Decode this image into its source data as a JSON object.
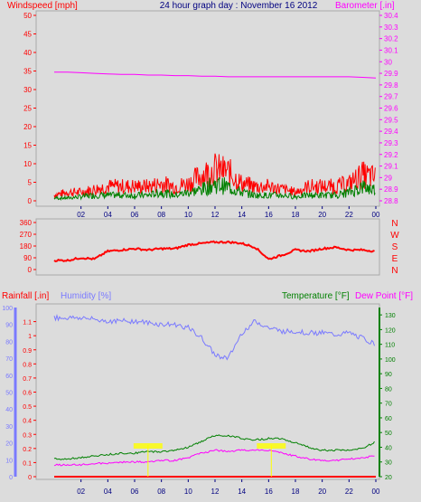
{
  "header": {
    "left": "Windspeed [mph]",
    "center": "24 hour graph day : November 16 2012",
    "right": "Barometer [.in]"
  },
  "time_ticks": [
    "02",
    "04",
    "06",
    "08",
    "10",
    "12",
    "14",
    "16",
    "18",
    "20",
    "22",
    "00"
  ],
  "colors": {
    "bg": "#dcdcdc",
    "plot_bg": "#dcdcdc",
    "border": "#aaaaaa",
    "grid": "#cccccc",
    "windspeed": "#ff0000",
    "avg_wind": "#008000",
    "barometer": "#ff00ff",
    "direction": "#ff0000",
    "rain": "#ff0000",
    "humidity": "#7a7aff",
    "temperature": "#008000",
    "dewpoint": "#ff00ff",
    "tick_time": "#000080",
    "marker": "#ffff00"
  },
  "chart_data": [
    {
      "type": "line",
      "name": "wind",
      "title": "24 hour graph day : November 16 2012",
      "ylabel": "Windspeed [mph]",
      "ylabel_right": "Barometer [.in]",
      "ylim": [
        0,
        50
      ],
      "ylim_right": [
        28.8,
        30.4
      ],
      "yticks": [
        "0",
        "5",
        "10",
        "15",
        "20",
        "25",
        "30",
        "35",
        "40",
        "45",
        "50"
      ],
      "yticks_right": [
        "28.8",
        "28.9",
        "29",
        "29.1",
        "29.2",
        "29.3",
        "29.4",
        "29.5",
        "29.6",
        "29.7",
        "29.8",
        "29.9",
        "30",
        "30.1",
        "30.2",
        "30.3",
        "30.4"
      ],
      "x_hours": [
        0,
        1,
        2,
        3,
        4,
        5,
        6,
        7,
        8,
        9,
        10,
        11,
        12,
        13,
        14,
        15,
        16,
        17,
        18,
        19,
        20,
        21,
        22,
        23,
        24
      ],
      "series": [
        {
          "key": "gust",
          "values": [
            2,
            3,
            3,
            4,
            5,
            5,
            5,
            5,
            6,
            5,
            6,
            9,
            11,
            10,
            6,
            5,
            5,
            4,
            3,
            5,
            5,
            5,
            6,
            9,
            8
          ]
        },
        {
          "key": "avg",
          "values": [
            1,
            1,
            1.5,
            2,
            2,
            2,
            2,
            2,
            3,
            2,
            3,
            4,
            6,
            5,
            3,
            2,
            2,
            2,
            1.5,
            2,
            2,
            2,
            3,
            5,
            4
          ]
        },
        {
          "key": "baro",
          "values": [
            29.91,
            29.91,
            29.905,
            29.9,
            29.895,
            29.89,
            29.89,
            29.885,
            29.885,
            29.88,
            29.88,
            29.875,
            29.875,
            29.87,
            29.87,
            29.87,
            29.87,
            29.87,
            29.87,
            29.87,
            29.87,
            29.87,
            29.87,
            29.865,
            29.86
          ]
        }
      ]
    },
    {
      "type": "line",
      "name": "direction",
      "ylim": [
        0,
        360
      ],
      "yticks": [
        "0",
        "90",
        "180",
        "270",
        "360"
      ],
      "compass": [
        "N",
        "W",
        "S",
        "E",
        "N"
      ],
      "x_hours": [
        0,
        1,
        2,
        3,
        4,
        5,
        6,
        7,
        8,
        9,
        10,
        11,
        12,
        13,
        14,
        15,
        16,
        17,
        18,
        19,
        20,
        21,
        22,
        23,
        24
      ],
      "values": [
        70,
        70,
        90,
        80,
        140,
        150,
        160,
        150,
        160,
        160,
        190,
        200,
        210,
        210,
        200,
        170,
        80,
        110,
        150,
        140,
        160,
        170,
        150,
        150,
        140
      ]
    },
    {
      "type": "line",
      "name": "climate",
      "ylabel": "Rainfall [.in]",
      "ylabel_humidity": "Humidity [%]",
      "ylabel_right": "Temperature [°F]",
      "ylabel_right2": "Dew Point [°F]",
      "ylim_rain": [
        0,
        1.2
      ],
      "ylim_humidity": [
        0,
        100
      ],
      "ylim_temp": [
        20,
        135
      ],
      "yticks_rain": [
        "0",
        "0.1",
        "0.2",
        "0.3",
        "0.4",
        "0.5",
        "0.6",
        "0.7",
        "0.8",
        "0.9",
        "1",
        "1.1"
      ],
      "yticks_humidity": [
        "0",
        "10",
        "20",
        "30",
        "40",
        "50",
        "60",
        "70",
        "80",
        "90",
        "100"
      ],
      "yticks_temp": [
        "20",
        "30",
        "40",
        "50",
        "60",
        "70",
        "80",
        "90",
        "100",
        "110",
        "120",
        "130"
      ],
      "x_hours": [
        0,
        1,
        2,
        3,
        4,
        5,
        6,
        7,
        8,
        9,
        10,
        11,
        12,
        13,
        14,
        15,
        16,
        17,
        18,
        19,
        20,
        21,
        22,
        23,
        24
      ],
      "series": [
        {
          "key": "humidity",
          "values": [
            94,
            94,
            94,
            93,
            92,
            92,
            92,
            91,
            90,
            90,
            88,
            82,
            72,
            70,
            85,
            92,
            88,
            86,
            86,
            85,
            85,
            84,
            85,
            82,
            78
          ]
        },
        {
          "key": "temperature",
          "values": [
            32,
            32,
            33,
            34,
            35,
            36,
            36,
            37,
            37,
            38,
            40,
            44,
            48,
            48,
            46,
            45,
            46,
            46,
            43,
            40,
            38,
            38,
            38,
            39,
            44
          ]
        },
        {
          "key": "dewpoint",
          "values": [
            28,
            28,
            28,
            29,
            29,
            30,
            30,
            30,
            31,
            31,
            33,
            36,
            38,
            37,
            38,
            38,
            38,
            36,
            34,
            32,
            31,
            31,
            32,
            33,
            34
          ]
        },
        {
          "key": "rain",
          "values": [
            0,
            0,
            0,
            0,
            0,
            0,
            0,
            0,
            0,
            0,
            0,
            0,
            0,
            0,
            0,
            0,
            0,
            0,
            0,
            0,
            0,
            0,
            0,
            0,
            0
          ]
        }
      ],
      "markers": [
        {
          "hour": 7.0
        },
        {
          "hour": 16.2
        }
      ]
    }
  ]
}
